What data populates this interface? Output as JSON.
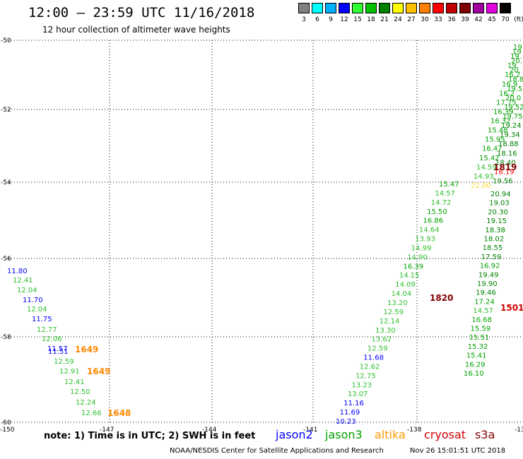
{
  "header": {
    "title": "12:00 — 23:59 UTC 11/16/2018",
    "subtitle": "12 hour collection of altimeter wave heights"
  },
  "legend": {
    "unit": "(ft)",
    "items": [
      {
        "label": "3",
        "color": "#808080"
      },
      {
        "label": "6",
        "color": "#00ffff"
      },
      {
        "label": "9",
        "color": "#00b0ff"
      },
      {
        "label": "12",
        "color": "#0000ff"
      },
      {
        "label": "15",
        "color": "#30ff30"
      },
      {
        "label": "18",
        "color": "#00c000"
      },
      {
        "label": "21",
        "color": "#008000"
      },
      {
        "label": "24",
        "color": "#ffff00"
      },
      {
        "label": "27",
        "color": "#ffc000"
      },
      {
        "label": "30",
        "color": "#ff8000"
      },
      {
        "label": "33",
        "color": "#ff0000"
      },
      {
        "label": "36",
        "color": "#c00000"
      },
      {
        "label": "39",
        "color": "#800000"
      },
      {
        "label": "42",
        "color": "#a000a0"
      },
      {
        "label": "45",
        "color": "#e000e0"
      },
      {
        "label": "70",
        "color": "#000000"
      }
    ]
  },
  "axes": {
    "lat_labels": [
      "-50",
      "-52",
      "-54",
      "-56",
      "-58",
      "-60"
    ],
    "lon_labels": [
      "-150",
      "-147",
      "-144",
      "-141",
      "-138",
      "-13"
    ]
  },
  "colors": {
    "jason2": "#0000ff",
    "jason3": "#00a000",
    "jason3_light": "#30c030",
    "altika": "#ff9900",
    "altika_pale": "#ffdd33",
    "cryosat": "#d00000",
    "s3a": "#800000",
    "time_label": "#ff8800"
  },
  "observations": {
    "track_a": [
      {
        "v": "11.80",
        "c": "#0000ff"
      },
      {
        "v": "12.41",
        "c": "#30c030"
      },
      {
        "v": "12.04",
        "c": "#30c030"
      },
      {
        "v": "11.70",
        "c": "#0000ff"
      },
      {
        "v": "12.04",
        "c": "#30c030"
      },
      {
        "v": "11.75",
        "c": "#0000ff"
      },
      {
        "v": "12.77",
        "c": "#30c030"
      },
      {
        "v": "12.06",
        "c": "#30c030"
      },
      {
        "v": "11.57",
        "c": "#0000ff"
      },
      {
        "v": "11.51",
        "c": "#0000ff"
      },
      {
        "v": "12.59",
        "c": "#30c030"
      },
      {
        "v": "12.91",
        "c": "#30c030"
      },
      {
        "v": "12.41",
        "c": "#30c030"
      },
      {
        "v": "12.50",
        "c": "#30c030"
      },
      {
        "v": "12.24",
        "c": "#30c030"
      },
      {
        "v": "12.66",
        "c": "#30c030"
      }
    ],
    "track_b": [
      {
        "v": "15.47",
        "c": "#00a000"
      },
      {
        "v": "14.57",
        "c": "#30c030"
      },
      {
        "v": "14.72",
        "c": "#30c030"
      },
      {
        "v": "15.50",
        "c": "#00a000"
      },
      {
        "v": "16.86",
        "c": "#00a000"
      },
      {
        "v": "14.64",
        "c": "#30c030"
      },
      {
        "v": "13.93",
        "c": "#30c030"
      },
      {
        "v": "14.99",
        "c": "#30c030"
      },
      {
        "v": "14.90",
        "c": "#30c030"
      },
      {
        "v": "16.39",
        "c": "#00a000"
      },
      {
        "v": "14.15",
        "c": "#30c030"
      },
      {
        "v": "14.09",
        "c": "#30c030"
      },
      {
        "v": "14.04",
        "c": "#30c030"
      },
      {
        "v": "13.20",
        "c": "#30c030"
      },
      {
        "v": "12.59",
        "c": "#30c030"
      },
      {
        "v": "12.14",
        "c": "#30c030"
      },
      {
        "v": "13.30",
        "c": "#30c030"
      },
      {
        "v": "13.62",
        "c": "#30c030"
      },
      {
        "v": "12.59",
        "c": "#30c030"
      },
      {
        "v": "11.68",
        "c": "#0000ff"
      },
      {
        "v": "12.62",
        "c": "#30c030"
      },
      {
        "v": "12.75",
        "c": "#30c030"
      },
      {
        "v": "13.23",
        "c": "#30c030"
      },
      {
        "v": "13.07",
        "c": "#30c030"
      },
      {
        "v": "11.16",
        "c": "#0000ff"
      },
      {
        "v": "11.69",
        "c": "#0000ff"
      },
      {
        "v": "10.23",
        "c": "#0000ff"
      }
    ],
    "track_c_upper": [
      {
        "v": "19",
        "c": "#00a000"
      },
      {
        "v": "19",
        "c": "#00a000"
      },
      {
        "v": "19.",
        "c": "#00a000"
      },
      {
        "v": "20.",
        "c": "#00a000"
      },
      {
        "v": "19.",
        "c": "#00a000"
      },
      {
        "v": "20.",
        "c": "#00a000"
      },
      {
        "v": "16.2",
        "c": "#00a000"
      },
      {
        "v": "18.8",
        "c": "#00a000"
      },
      {
        "v": "16.9",
        "c": "#00a000"
      },
      {
        "v": "19.5",
        "c": "#00a000"
      },
      {
        "v": "16.2",
        "c": "#00a000"
      },
      {
        "v": "20.0",
        "c": "#00a000"
      },
      {
        "v": "17.75",
        "c": "#00a000"
      },
      {
        "v": "19.52",
        "c": "#00a000"
      },
      {
        "v": "16.39",
        "c": "#00a000"
      },
      {
        "v": "19.75",
        "c": "#00a000"
      },
      {
        "v": "16.32",
        "c": "#00a000"
      },
      {
        "v": "19.24",
        "c": "#008000"
      },
      {
        "v": "15.48",
        "c": "#00a000"
      },
      {
        "v": "19.34",
        "c": "#008000"
      },
      {
        "v": "15.95",
        "c": "#00a000"
      },
      {
        "v": "18.88",
        "c": "#008000"
      },
      {
        "v": "16.47",
        "c": "#00a000"
      },
      {
        "v": "18.16",
        "c": "#008000"
      },
      {
        "v": "15.42",
        "c": "#00a000"
      },
      {
        "v": "18.40",
        "c": "#008000"
      },
      {
        "v": "14.59",
        "c": "#30c030"
      },
      {
        "v": "18.19",
        "c": "#ff0000"
      },
      {
        "v": "14.93",
        "c": "#30c030"
      },
      {
        "v": "19.56",
        "c": "#008000"
      },
      {
        "v": "22.00",
        "c": "#ffdd33"
      }
    ],
    "track_c_lower": [
      {
        "v": "20.94",
        "c": "#008000"
      },
      {
        "v": "19.03",
        "c": "#008000"
      },
      {
        "v": "20.30",
        "c": "#008000"
      },
      {
        "v": "19.15",
        "c": "#008000"
      },
      {
        "v": "18.38",
        "c": "#008000"
      },
      {
        "v": "18.02",
        "c": "#008000"
      },
      {
        "v": "18.55",
        "c": "#008000"
      },
      {
        "v": "17.59",
        "c": "#008000"
      },
      {
        "v": "16.92",
        "c": "#00a000"
      },
      {
        "v": "19.49",
        "c": "#008000"
      },
      {
        "v": "19.90",
        "c": "#008000"
      },
      {
        "v": "19.46",
        "c": "#008000"
      },
      {
        "v": "17.24",
        "c": "#00a000"
      },
      {
        "v": "14.57",
        "c": "#30c030"
      },
      {
        "v": "16.68",
        "c": "#00a000"
      },
      {
        "v": "15.59",
        "c": "#00a000"
      },
      {
        "v": "15.51",
        "c": "#00a000"
      },
      {
        "v": "15.32",
        "c": "#00a000"
      },
      {
        "v": "15.41",
        "c": "#00a000"
      },
      {
        "v": "16.29",
        "c": "#00a000"
      },
      {
        "v": "16.10",
        "c": "#00a000"
      }
    ],
    "time_labels": [
      {
        "v": "1649",
        "c": "#ff8800"
      },
      {
        "v": "1649",
        "c": "#ff8800"
      },
      {
        "v": "1648",
        "c": "#ff8800"
      },
      {
        "v": "1820",
        "c": "#800000"
      },
      {
        "v": "1819",
        "c": "#800000"
      },
      {
        "v": "1501",
        "c": "#d00000"
      }
    ]
  },
  "footer": {
    "note": "note: 1) Time is in UTC; 2) SWH is in feet",
    "satellites": {
      "jason2": "jason2",
      "jason3": "jason3",
      "altika": "altika",
      "cryosat": "cryosat",
      "s3a": "s3a"
    },
    "credit": "NOAA/NESDIS Center for Satellite Applications and Research",
    "timestamp": "Nov 26 15:01:51 UTC 2018"
  }
}
